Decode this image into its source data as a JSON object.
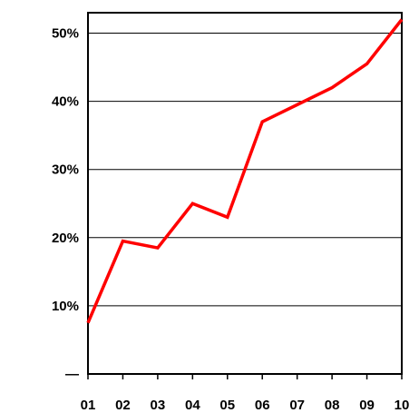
{
  "chart_data": {
    "type": "line",
    "categories": [
      "01",
      "02",
      "03",
      "04",
      "05",
      "06",
      "07",
      "08",
      "09",
      "10"
    ],
    "series": [
      {
        "values": [
          7.5,
          19.5,
          18.5,
          25,
          23,
          37,
          39.5,
          42,
          45.5,
          52
        ]
      }
    ],
    "y_tick_labels": [
      "—",
      "10%",
      "20%",
      "30%",
      "40%",
      "50%"
    ],
    "y_ticks": [
      0,
      10,
      20,
      30,
      40,
      50
    ],
    "ylim": [
      0,
      53
    ],
    "grid": true,
    "line_color": "#ff0000",
    "grid_color": "#000000"
  }
}
